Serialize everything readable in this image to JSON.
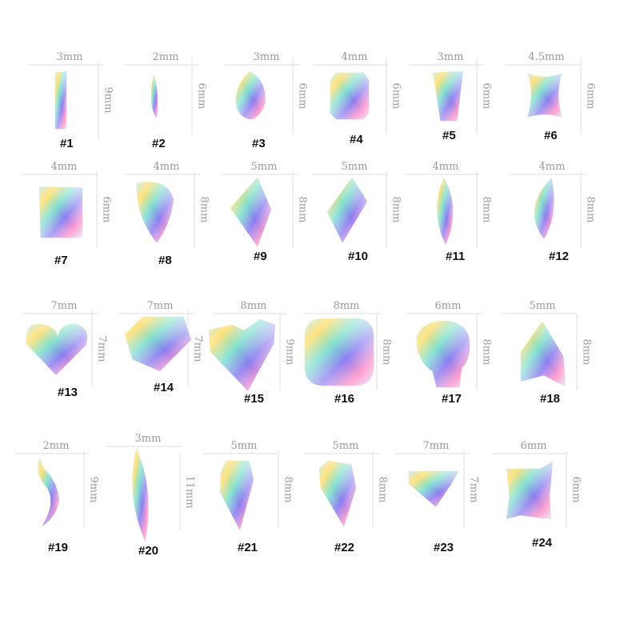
{
  "items": [
    {
      "label": "#1",
      "width": "3mm",
      "height": "9mm"
    },
    {
      "label": "#2",
      "width": "2mm",
      "height": "6mm"
    },
    {
      "label": "#3",
      "width": "3mm",
      "height": "6mm"
    },
    {
      "label": "#4",
      "width": "4mm",
      "height": "6mm"
    },
    {
      "label": "#5",
      "width": "3mm",
      "height": "6mm"
    },
    {
      "label": "#6",
      "width": "4.5mm",
      "height": "6mm"
    },
    {
      "label": "#7",
      "width": "4mm",
      "height": "6mm"
    },
    {
      "label": "#8",
      "width": "4mm",
      "height": "8mm"
    },
    {
      "label": "#9",
      "width": "5mm",
      "height": "8mm"
    },
    {
      "label": "#10",
      "width": "5mm",
      "height": "8mm"
    },
    {
      "label": "#11",
      "width": "4mm",
      "height": "8mm"
    },
    {
      "label": "#12",
      "width": "4mm",
      "height": "8mm"
    },
    {
      "label": "#13",
      "width": "7mm",
      "height": "7mm"
    },
    {
      "label": "#14",
      "width": "7mm",
      "height": "7mm"
    },
    {
      "label": "#15",
      "width": "8mm",
      "height": "9mm"
    },
    {
      "label": "#16",
      "width": "8mm",
      "height": "8mm"
    },
    {
      "label": "#17",
      "width": "6mm",
      "height": "8mm"
    },
    {
      "label": "#18",
      "width": "5mm",
      "height": "8mm"
    },
    {
      "label": "#19",
      "width": "2mm",
      "height": "9mm"
    },
    {
      "label": "#20",
      "width": "3mm",
      "height": "11mm"
    },
    {
      "label": "#21",
      "width": "5mm",
      "height": "8mm"
    },
    {
      "label": "#22",
      "width": "5mm",
      "height": "8mm"
    },
    {
      "label": "#23",
      "width": "7mm",
      "height": "7mm"
    },
    {
      "label": "#24",
      "width": "6mm",
      "height": "6mm"
    }
  ]
}
